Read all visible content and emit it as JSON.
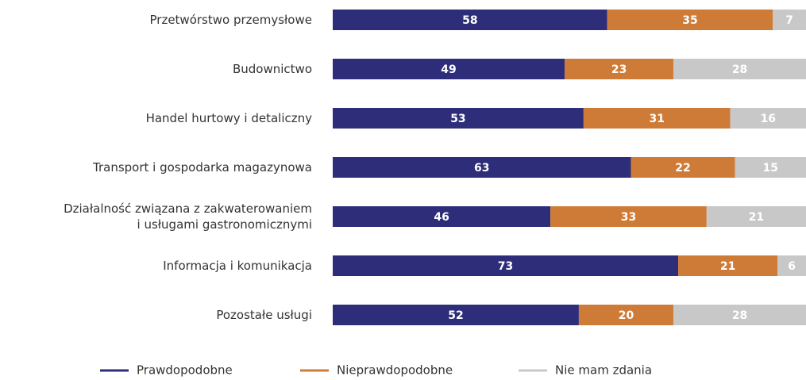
{
  "chart_data": {
    "type": "stacked_barh",
    "categories": [
      "Przetwórstwo przemysłowe",
      "Budownictwo",
      "Handel hurtowy i detaliczny",
      "Transport i gospodarka magazynowa",
      "Działalność związana z zakwaterowaniem\ni usługami gastronomicznymi",
      "Informacja i komunikacja",
      "Pozostałe usługi"
    ],
    "series": [
      {
        "name": "Prawdopodobne",
        "color": "#2e2d7a",
        "values": [
          58,
          49,
          53,
          63,
          46,
          73,
          52
        ]
      },
      {
        "name": "Nieprawdopodobne",
        "color": "#cf7b38",
        "values": [
          35,
          23,
          31,
          22,
          33,
          21,
          20
        ]
      },
      {
        "name": "Nie mam zdania",
        "color": "#c8c8c8",
        "values": [
          7,
          28,
          16,
          15,
          21,
          6,
          28
        ]
      }
    ],
    "xlim": [
      0,
      100
    ],
    "legend": "bottom"
  }
}
